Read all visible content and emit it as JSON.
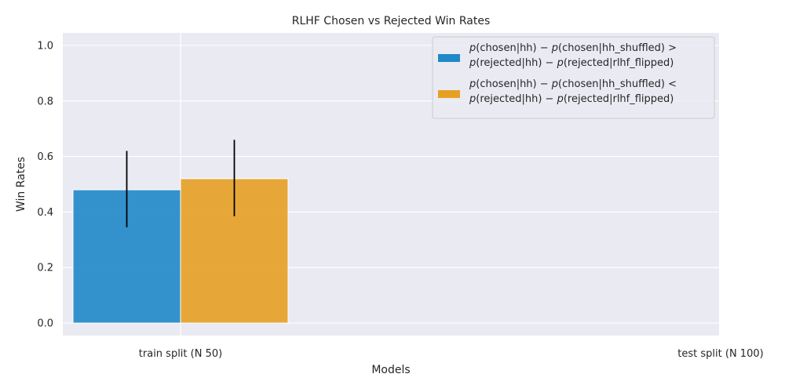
{
  "chart_data": {
    "type": "bar",
    "title": "RLHF Chosen vs Rejected Win Rates",
    "xlabel": "Models",
    "ylabel": "Win Rates",
    "categories": [
      "train split (N 50)",
      "test split (N 100)"
    ],
    "ylim": [
      -0.045,
      1.045
    ],
    "yticks": [
      "0.0",
      "0.2",
      "0.4",
      "0.6",
      "0.8",
      "1.0"
    ],
    "grid": true,
    "legend_position": "top-right",
    "series": [
      {
        "name_lines": [
          [
            "p",
            "(chosen|hh) − ",
            "p",
            "(chosen|hh_shuffled) >"
          ],
          [
            "p",
            "(rejected|hh) − ",
            "p",
            "(rejected|rlhf_flipped)"
          ]
        ],
        "color": "#1f88c8",
        "values": [
          0.48,
          null
        ],
        "err_low": [
          0.345,
          null
        ],
        "err_high": [
          0.62,
          null
        ]
      },
      {
        "name_lines": [
          [
            "p",
            "(chosen|hh) − ",
            "p",
            "(chosen|hh_shuffled) <"
          ],
          [
            "p",
            "(rejected|hh) − ",
            "p",
            "(rejected|rlhf_flipped)"
          ]
        ],
        "color": "#e6a024",
        "values": [
          0.52,
          null
        ],
        "err_low": [
          0.385,
          null
        ],
        "err_high": [
          0.66,
          null
        ]
      }
    ]
  }
}
